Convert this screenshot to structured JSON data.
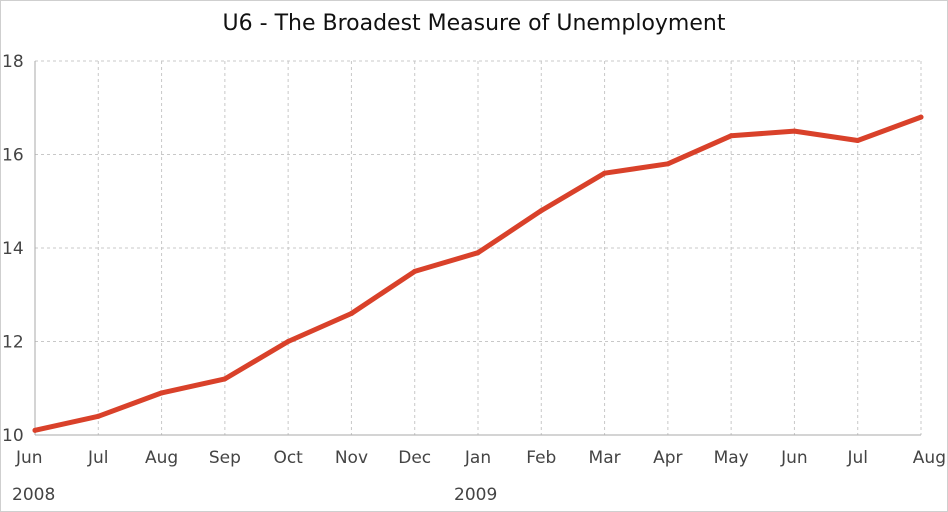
{
  "chart_data": {
    "type": "line",
    "title": "U6 - The Broadest Measure of Unemployment",
    "xlabel": "",
    "ylabel": "",
    "categories": [
      "Jun",
      "Jul",
      "Aug",
      "Sep",
      "Oct",
      "Nov",
      "Dec",
      "Jan",
      "Feb",
      "Mar",
      "Apr",
      "May",
      "Jun",
      "Jul",
      "Aug"
    ],
    "year_labels": [
      {
        "label": "2008",
        "category_index": 0
      },
      {
        "label": "2009",
        "category_index": 7
      }
    ],
    "series": [
      {
        "color": "#d9412a",
        "values": [
          10.1,
          10.4,
          10.9,
          11.2,
          12.0,
          12.6,
          13.5,
          13.9,
          14.8,
          15.6,
          15.8,
          16.4,
          16.5,
          16.3,
          16.8
        ]
      }
    ],
    "ylim": [
      10,
      18
    ],
    "yticks": [
      10,
      12,
      14,
      16,
      18
    ],
    "grid": true,
    "legend": "none"
  }
}
